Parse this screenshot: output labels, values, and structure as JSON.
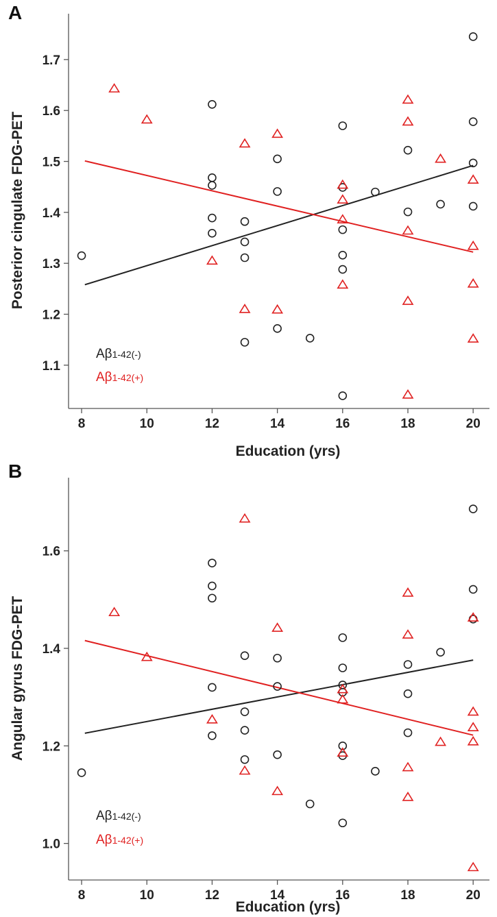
{
  "colors": {
    "negative": "#222222",
    "positive": "#e02020"
  },
  "chart_data": [
    {
      "type": "scatter",
      "panel_label": "A",
      "xlabel": "Education (yrs)",
      "ylabel": "Posterior cingulate FDG-PET",
      "xlim": [
        7.6,
        20.5
      ],
      "ylim": [
        1.015,
        1.79
      ],
      "xticks": [
        8,
        10,
        12,
        14,
        16,
        18,
        20
      ],
      "yticks": [
        1.1,
        1.2,
        1.3,
        1.4,
        1.5,
        1.6,
        1.7
      ],
      "ytick_labels": [
        "1.1",
        "1.2",
        "1.3",
        "1.4",
        "1.5",
        "1.6",
        "1.7"
      ],
      "grid": false,
      "legend_position": "bottom-left",
      "series": [
        {
          "name_base": "Aβ",
          "name_sub": "1-42(-)",
          "color": "#222222",
          "marker": "circle",
          "points": [
            [
              8,
              1.315
            ],
            [
              12,
              1.612
            ],
            [
              12,
              1.468
            ],
            [
              12,
              1.453
            ],
            [
              12,
              1.389
            ],
            [
              12,
              1.359
            ],
            [
              13,
              1.382
            ],
            [
              13,
              1.342
            ],
            [
              13,
              1.311
            ],
            [
              13,
              1.145
            ],
            [
              14,
              1.505
            ],
            [
              14,
              1.441
            ],
            [
              14,
              1.172
            ],
            [
              15,
              1.153
            ],
            [
              16,
              1.57
            ],
            [
              16,
              1.449
            ],
            [
              16,
              1.366
            ],
            [
              16,
              1.316
            ],
            [
              16,
              1.288
            ],
            [
              16,
              1.04
            ],
            [
              17,
              1.44
            ],
            [
              18,
              1.522
            ],
            [
              18,
              1.401
            ],
            [
              19,
              1.416
            ],
            [
              20,
              1.745
            ],
            [
              20,
              1.578
            ],
            [
              20,
              1.497
            ],
            [
              20,
              1.412
            ]
          ],
          "fit": [
            [
              8.1,
              1.258
            ],
            [
              20,
              1.492
            ]
          ]
        },
        {
          "name_base": "Aβ",
          "name_sub": "1-42(+)",
          "color": "#e02020",
          "marker": "triangle",
          "points": [
            [
              9,
              1.643
            ],
            [
              10,
              1.582
            ],
            [
              12,
              1.305
            ],
            [
              13,
              1.535
            ],
            [
              13,
              1.21
            ],
            [
              14,
              1.554
            ],
            [
              14,
              1.209
            ],
            [
              16,
              1.454
            ],
            [
              16,
              1.425
            ],
            [
              16,
              1.386
            ],
            [
              16,
              1.258
            ],
            [
              18,
              1.621
            ],
            [
              18,
              1.578
            ],
            [
              18,
              1.364
            ],
            [
              18,
              1.226
            ],
            [
              18,
              1.042
            ],
            [
              19,
              1.505
            ],
            [
              20,
              1.464
            ],
            [
              20,
              1.334
            ],
            [
              20,
              1.26
            ],
            [
              20,
              1.152
            ]
          ],
          "fit": [
            [
              8.1,
              1.501
            ],
            [
              20,
              1.322
            ]
          ]
        }
      ]
    },
    {
      "type": "scatter",
      "panel_label": "B",
      "xlabel": "Education (yrs)",
      "ylabel": "Angular gyrus FDG-PET",
      "xlim": [
        7.6,
        20.5
      ],
      "ylim": [
        0.925,
        1.75
      ],
      "xticks": [
        8,
        10,
        12,
        14,
        16,
        18,
        20
      ],
      "yticks": [
        1.0,
        1.2,
        1.4,
        1.6
      ],
      "ytick_labels": [
        "1.0",
        "1.2",
        "1.4",
        "1.6"
      ],
      "grid": false,
      "legend_position": "bottom-left",
      "series": [
        {
          "name_base": "Aβ",
          "name_sub": "1-42(-)",
          "color": "#222222",
          "marker": "circle",
          "points": [
            [
              8,
              1.145
            ],
            [
              12,
              1.575
            ],
            [
              12,
              1.528
            ],
            [
              12,
              1.503
            ],
            [
              12,
              1.32
            ],
            [
              12,
              1.221
            ],
            [
              13,
              1.385
            ],
            [
              13,
              1.27
            ],
            [
              13,
              1.232
            ],
            [
              13,
              1.172
            ],
            [
              14,
              1.38
            ],
            [
              14,
              1.322
            ],
            [
              14,
              1.182
            ],
            [
              15,
              1.081
            ],
            [
              16,
              1.422
            ],
            [
              16,
              1.36
            ],
            [
              16,
              1.325
            ],
            [
              16,
              1.31
            ],
            [
              16,
              1.2
            ],
            [
              16,
              1.18
            ],
            [
              16,
              1.042
            ],
            [
              17,
              1.148
            ],
            [
              18,
              1.367
            ],
            [
              18,
              1.307
            ],
            [
              18,
              1.227
            ],
            [
              19,
              1.392
            ],
            [
              20,
              1.686
            ],
            [
              20,
              1.521
            ],
            [
              20,
              1.46
            ]
          ],
          "fit": [
            [
              8.1,
              1.226
            ],
            [
              20,
              1.376
            ]
          ]
        },
        {
          "name_base": "Aβ",
          "name_sub": "1-42(+)",
          "color": "#e02020",
          "marker": "triangle",
          "points": [
            [
              9,
              1.474
            ],
            [
              10,
              1.382
            ],
            [
              12,
              1.254
            ],
            [
              13,
              1.666
            ],
            [
              13,
              1.149
            ],
            [
              14,
              1.442
            ],
            [
              14,
              1.107
            ],
            [
              16,
              1.316
            ],
            [
              16,
              1.295
            ],
            [
              16,
              1.186
            ],
            [
              18,
              1.514
            ],
            [
              18,
              1.428
            ],
            [
              18,
              1.156
            ],
            [
              18,
              1.095
            ],
            [
              19,
              1.208
            ],
            [
              20,
              1.463
            ],
            [
              20,
              1.27
            ],
            [
              20,
              1.238
            ],
            [
              20,
              1.209
            ],
            [
              20,
              0.951
            ]
          ],
          "fit": [
            [
              8.1,
              1.416
            ],
            [
              20,
              1.222
            ]
          ]
        }
      ]
    }
  ]
}
